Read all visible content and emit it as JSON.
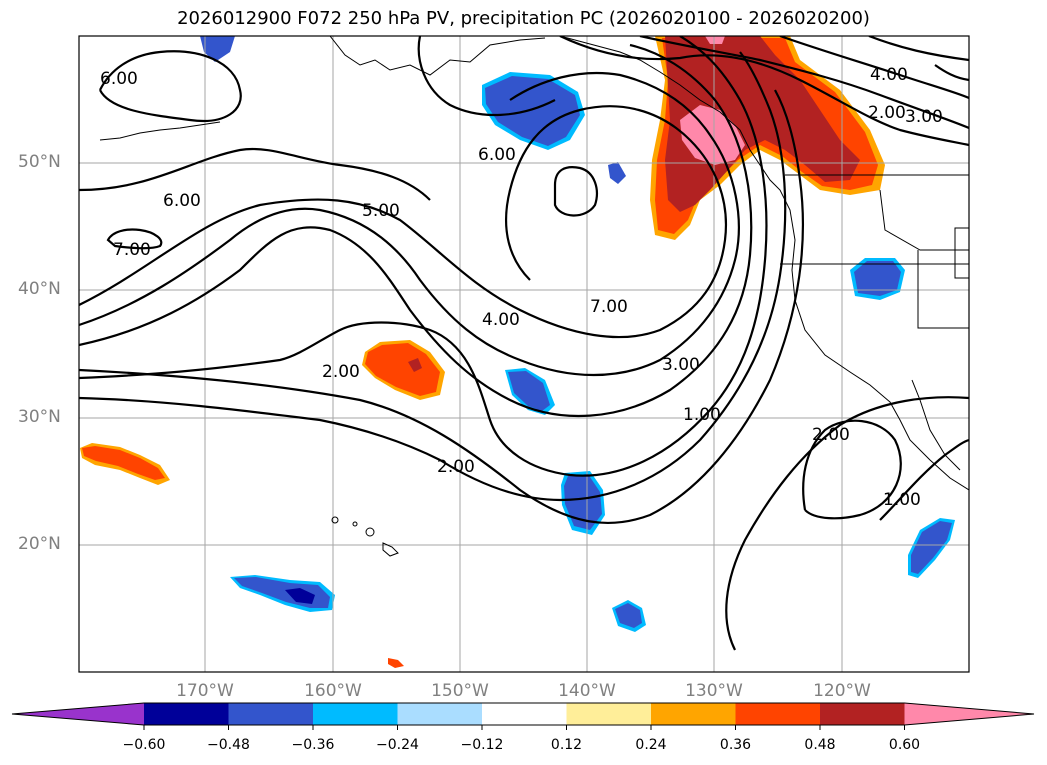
{
  "title": "2026012900 F072 250 hPa PV, precipitation PC (2026020100 - 2026020200)",
  "latitude_labels": [
    "50°N",
    "40°N",
    "30°N",
    "20°N"
  ],
  "longitude_labels": [
    "170°W",
    "160°W",
    "150°W",
    "140°W",
    "130°W",
    "120°W"
  ],
  "contour_labels": [
    "6.00",
    "6.00",
    "7.00",
    "5.00",
    "6.00",
    "4.00",
    "2.00",
    "3.00",
    "2.00",
    "4.00",
    "7.00",
    "3.00",
    "1.00",
    "2.00",
    "2.00",
    "1.00"
  ],
  "colorbar": {
    "ticks": [
      "−0.60",
      "−0.48",
      "−0.36",
      "−0.24",
      "−0.12",
      "0.12",
      "0.24",
      "0.36",
      "0.48",
      "0.60"
    ],
    "colors": [
      "#9933cc",
      "#000099",
      "#3355cc",
      "#00bbff",
      "#aaddff",
      "#ffffff",
      "#ffee99",
      "#ffa500",
      "#ff4400",
      "#b22222",
      "#ff88aa"
    ]
  },
  "colors": {
    "positive_strong": "#b22222",
    "positive_mid": "#ff4400",
    "positive_light": "#ffa500",
    "positive_max": "#ff88aa",
    "negative_mid": "#3355cc",
    "negative_strong": "#000099",
    "negative_light": "#00bbff"
  }
}
